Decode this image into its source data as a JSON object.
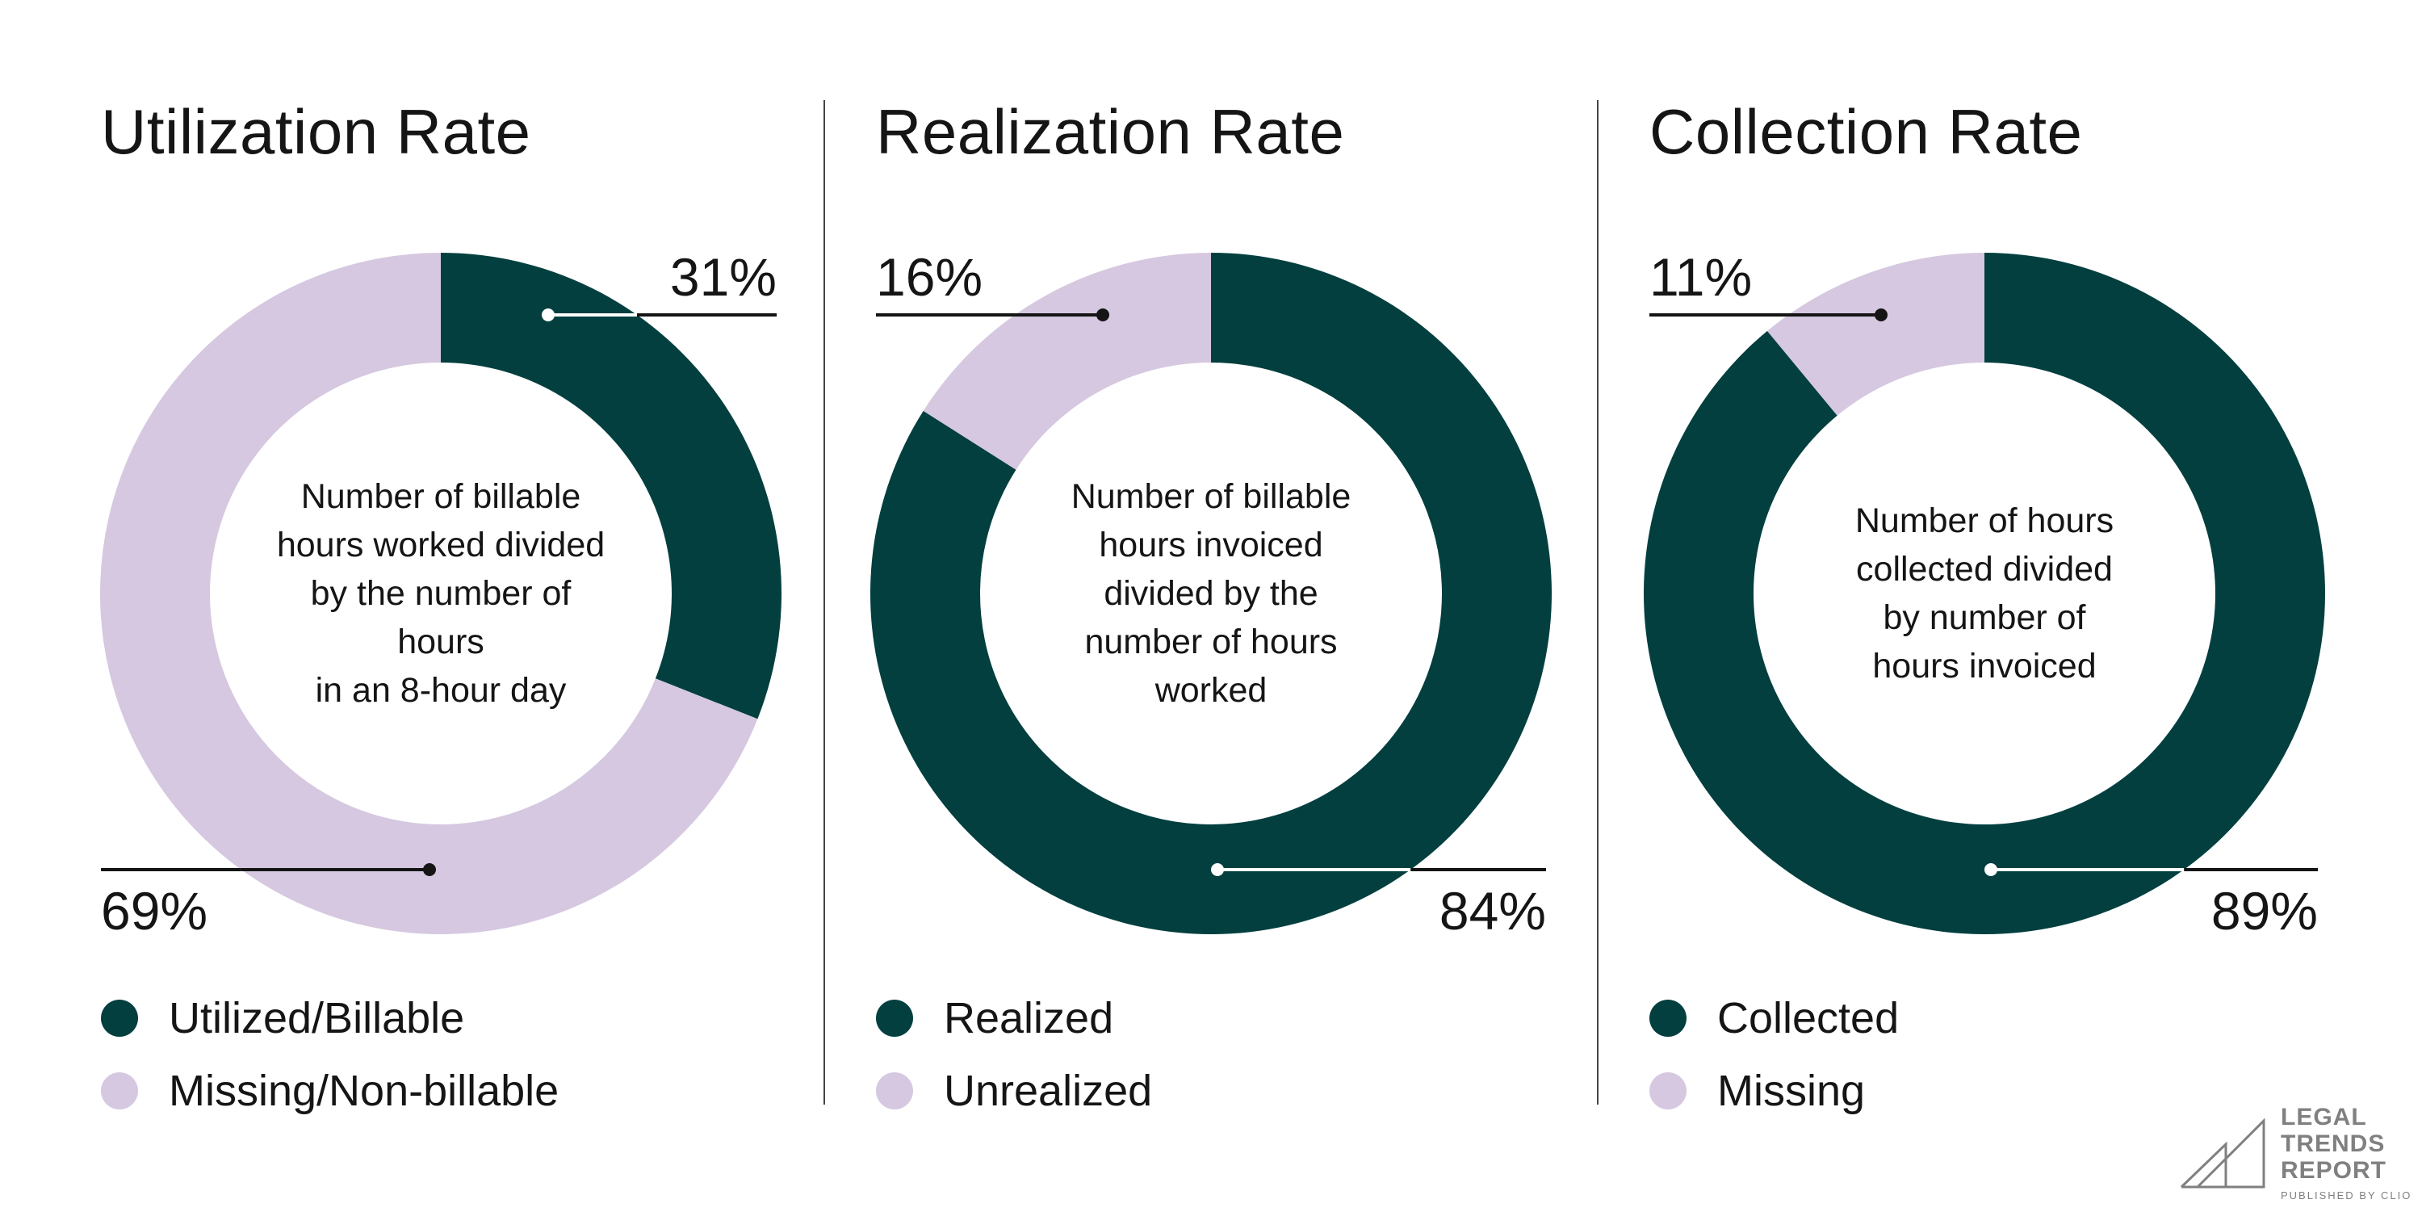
{
  "colors": {
    "primary": "#033f3f",
    "secondary": "#d5c8e0",
    "text": "#151515"
  },
  "chart_data": [
    {
      "type": "pie",
      "title": "Utilization Rate",
      "center_text": [
        "Number of billable",
        "hours worked divided",
        "by the number of hours",
        "in an 8-hour day"
      ],
      "categories": [
        "Utilized/Billable",
        "Missing/Non-billable"
      ],
      "values": [
        31,
        69
      ],
      "labels": [
        "31%",
        "69%"
      ],
      "legend": "bottom-left"
    },
    {
      "type": "pie",
      "title": "Realization Rate",
      "center_text": [
        "Number of billable",
        "hours invoiced",
        "divided by the",
        "number of hours",
        "worked"
      ],
      "categories": [
        "Realized",
        "Unrealized"
      ],
      "values": [
        84,
        16
      ],
      "labels": [
        "84%",
        "16%"
      ],
      "legend": "bottom-left"
    },
    {
      "type": "pie",
      "title": "Collection Rate",
      "center_text": [
        "Number of hours",
        "collected divided",
        "by number of",
        "hours invoiced"
      ],
      "categories": [
        "Collected",
        "Missing"
      ],
      "values": [
        89,
        11
      ],
      "labels": [
        "89%",
        "11%"
      ],
      "legend": "bottom-left"
    }
  ],
  "logo": {
    "lines": [
      "LEGAL",
      "TRENDS",
      "REPORT"
    ],
    "published_by": "PUBLISHED BY CLIO"
  }
}
